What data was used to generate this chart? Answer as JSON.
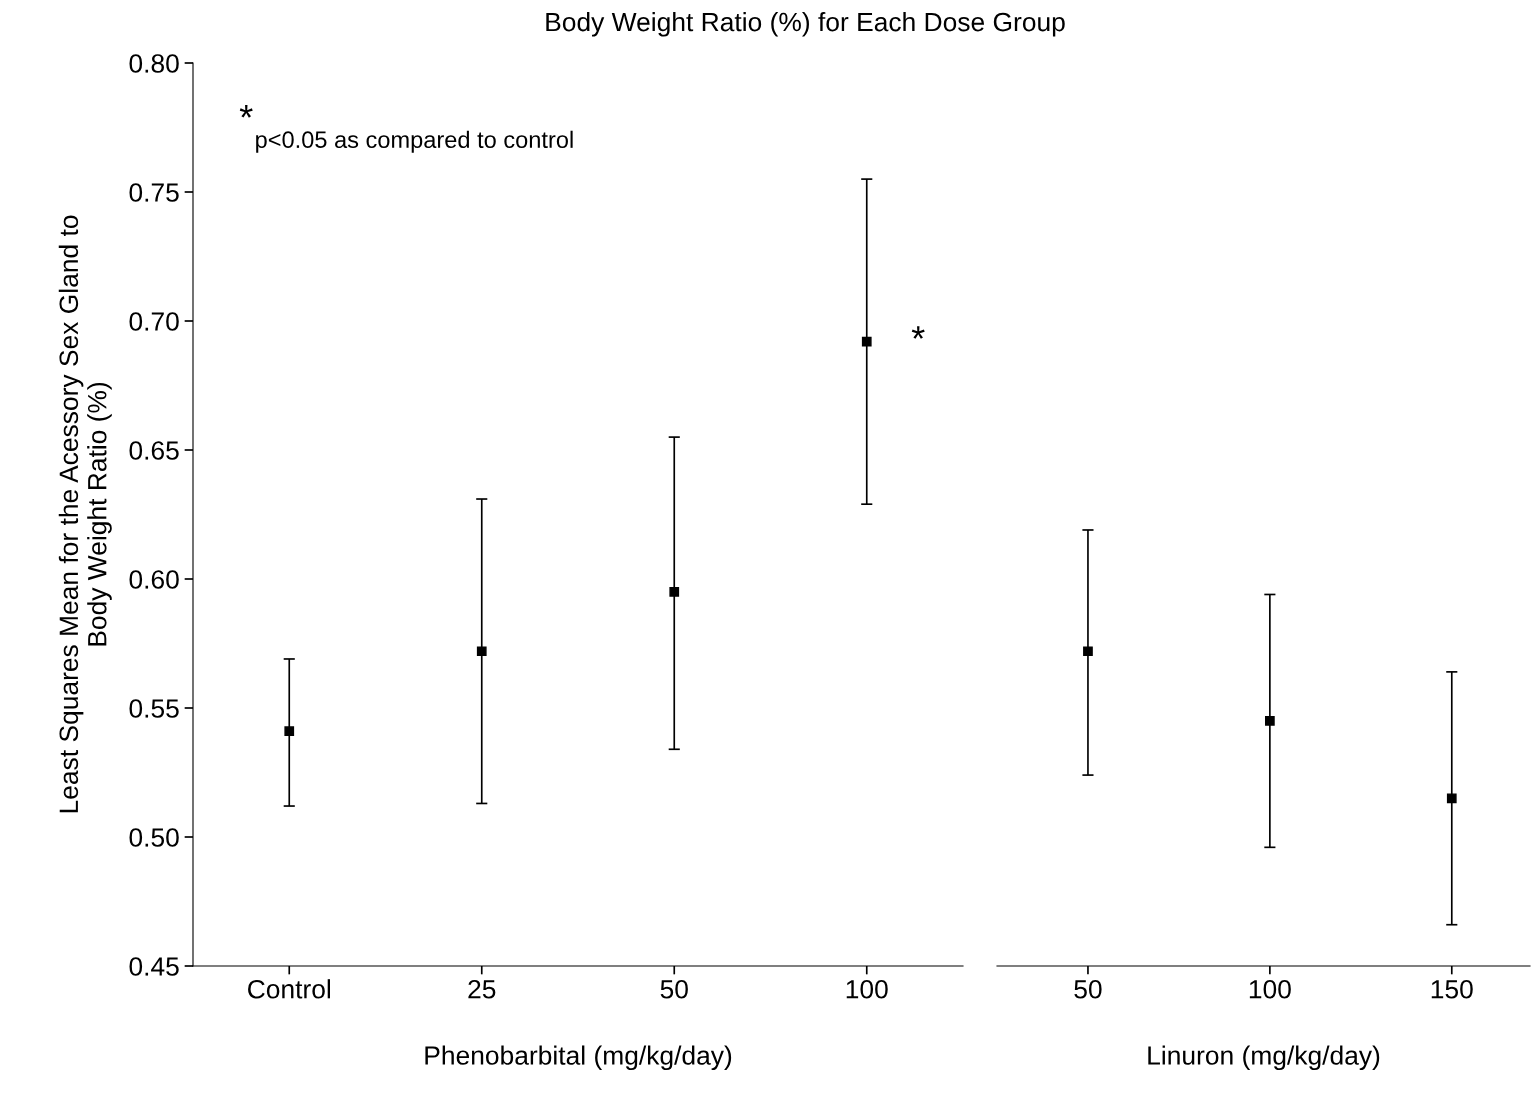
{
  "chart_data": [
    {
      "type": "scatter",
      "title": "Body Weight Ratio (%) for Each Dose Group",
      "ylabel": "Least Squares Mean for the Acessory Sex Gland to\nBody Weight Ratio (%)",
      "xlabel": "Phenobarbital (mg/kg/day)",
      "categories": [
        "Control",
        "25",
        "50",
        "100"
      ],
      "series": [
        {
          "color": "#000000",
          "values": [
            0.541,
            0.572,
            0.595,
            0.692
          ],
          "errors": [
            [
              0.512,
              0.569
            ],
            [
              0.513,
              0.631
            ],
            [
              0.534,
              0.655
            ],
            [
              0.629,
              0.755
            ]
          ]
        }
      ],
      "marker": "square",
      "ylim": [
        0.45,
        0.8
      ],
      "yticks": [
        0.45,
        {
          "value": 0.5,
          "label": "0.50"
        },
        0.55,
        {
          "value": 0.6,
          "label": "0.60"
        },
        0.65,
        {
          "value": 0.7,
          "label": "0.70"
        },
        0.75,
        {
          "value": 0.8,
          "label": "0.80"
        }
      ],
      "grid": false,
      "legend": false,
      "annotations": [
        {
          "text": "*",
          "x": "100",
          "y": 0.692
        },
        "*p<0.05 as compared to control"
      ]
    },
    {
      "type": "scatter",
      "xlabel": "Linuron (mg/kg/day)",
      "categories": [
        "50",
        "100",
        "150"
      ],
      "series": [
        {
          "color": "#000000",
          "values": [
            0.572,
            0.545,
            0.515
          ],
          "errors": [
            [
              0.524,
              0.619
            ],
            [
              0.496,
              0.594
            ],
            [
              0.466,
              0.564
            ]
          ]
        }
      ],
      "marker": "square",
      "ylim": [
        0.45,
        0.8
      ],
      "tick_labels": "x",
      "grid": false,
      "legend": false
    }
  ]
}
